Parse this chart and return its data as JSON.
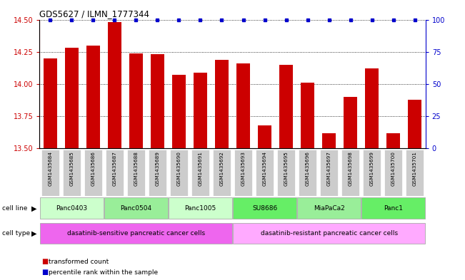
{
  "title": "GDS5627 / ILMN_1777344",
  "samples": [
    "GSM1435684",
    "GSM1435685",
    "GSM1435686",
    "GSM1435687",
    "GSM1435688",
    "GSM1435689",
    "GSM1435690",
    "GSM1435691",
    "GSM1435692",
    "GSM1435693",
    "GSM1435694",
    "GSM1435695",
    "GSM1435696",
    "GSM1435697",
    "GSM1435698",
    "GSM1435699",
    "GSM1435700",
    "GSM1435701"
  ],
  "transformed_count": [
    14.2,
    14.28,
    14.3,
    14.48,
    14.24,
    14.23,
    14.07,
    14.09,
    14.19,
    14.16,
    13.68,
    14.15,
    14.01,
    13.62,
    13.9,
    14.12,
    13.62,
    13.88
  ],
  "bar_color": "#cc0000",
  "percentile_color": "#0000cc",
  "ylim_left": [
    13.5,
    14.5
  ],
  "ylim_right": [
    0,
    100
  ],
  "yticks_left": [
    13.5,
    13.75,
    14.0,
    14.25,
    14.5
  ],
  "yticks_right": [
    0,
    25,
    50,
    75,
    100
  ],
  "cell_lines": [
    {
      "label": "Panc0403",
      "start": 0,
      "end": 3,
      "color": "#ccffcc"
    },
    {
      "label": "Panc0504",
      "start": 3,
      "end": 6,
      "color": "#99ee99"
    },
    {
      "label": "Panc1005",
      "start": 6,
      "end": 9,
      "color": "#ccffcc"
    },
    {
      "label": "SU8686",
      "start": 9,
      "end": 12,
      "color": "#66ee66"
    },
    {
      "label": "MiaPaCa2",
      "start": 12,
      "end": 15,
      "color": "#99ee99"
    },
    {
      "label": "Panc1",
      "start": 15,
      "end": 18,
      "color": "#66ee66"
    }
  ],
  "cell_types": [
    {
      "label": "dasatinib-sensitive pancreatic cancer cells",
      "start": 0,
      "end": 9,
      "color": "#ee66ee"
    },
    {
      "label": "dasatinib-resistant pancreatic cancer cells",
      "start": 9,
      "end": 18,
      "color": "#ffaaff"
    }
  ],
  "legend_items": [
    {
      "label": "transformed count",
      "color": "#cc0000"
    },
    {
      "label": "percentile rank within the sample",
      "color": "#0000cc"
    }
  ],
  "cell_line_label": "cell line",
  "cell_type_label": "cell type",
  "grid_color": "#000000",
  "tick_bg_color": "#cccccc",
  "background_color": "#ffffff"
}
